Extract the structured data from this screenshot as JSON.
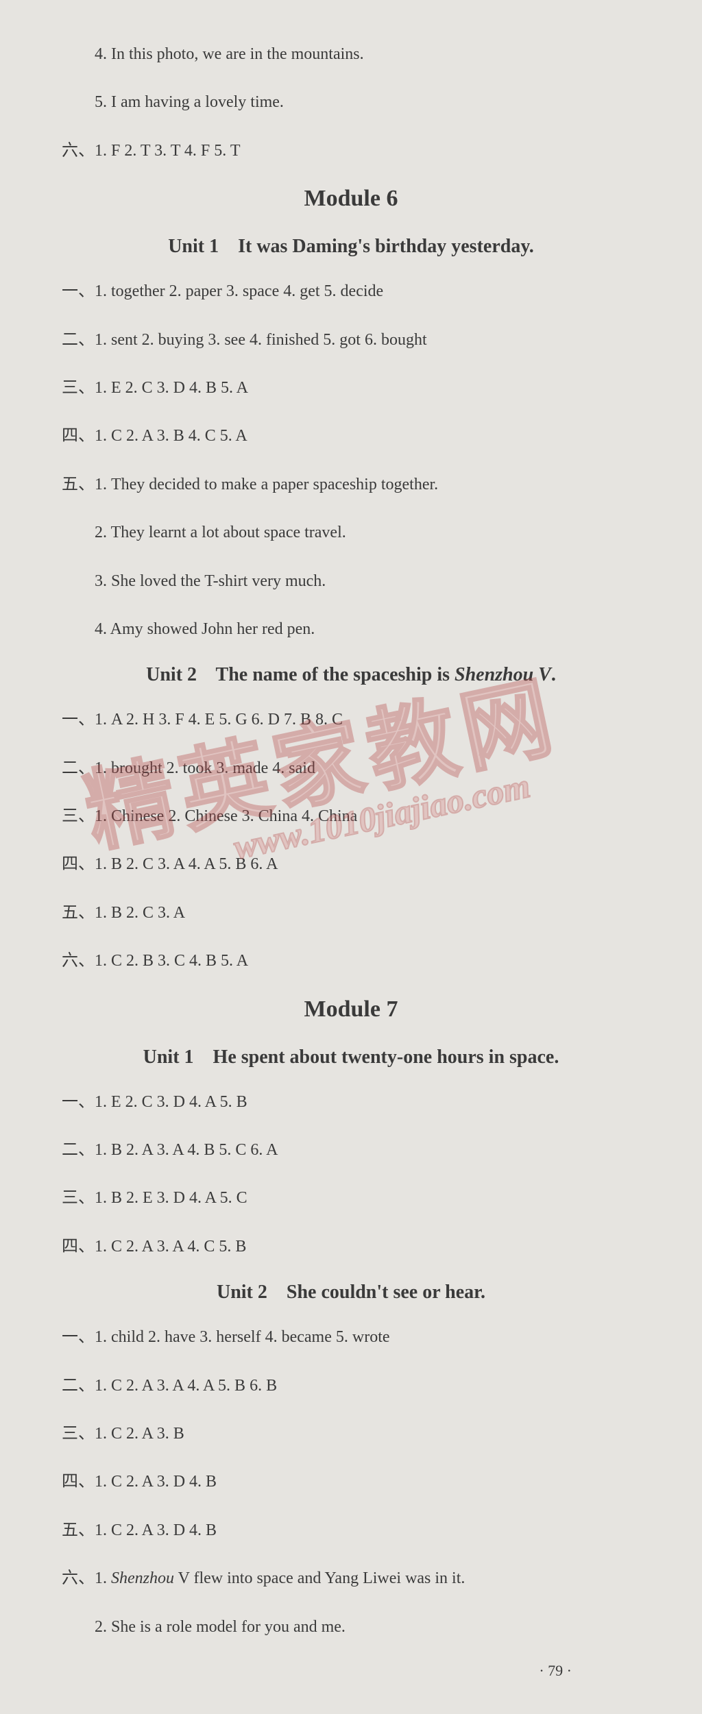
{
  "top": {
    "l1": "4. In this photo, we are in the mountains.",
    "l2": "5. I am having a lovely time.",
    "l3": "六、1. F   2. T   3. T   4. F   5. T"
  },
  "mod6": {
    "title": "Module 6",
    "u1": {
      "title_prefix": "Unit 1",
      "title_text": "It was Daming's birthday yesterday.",
      "a1": "一、1. together   2. paper   3. space   4. get   5. decide",
      "a2": "二、1. sent   2. buying   3. see   4. finished   5. got   6. bought",
      "a3": "三、1. E   2. C   3. D   4. B   5. A",
      "a4": "四、1. C   2. A   3. B   4. C   5. A",
      "a5": "五、1. They decided to make a paper spaceship together.",
      "a5_2": "2. They learnt a lot about space travel.",
      "a5_3": "3. She loved the T-shirt very much.",
      "a5_4": "4. Amy showed John her red pen."
    },
    "u2": {
      "title_prefix": "Unit 2",
      "title_text_a": "The name of the spaceship is ",
      "title_text_italic": "Shenzhou V",
      "title_text_b": ".",
      "a1": "一、1. A   2. H   3. F   4. E   5. G   6. D   7. B   8. C",
      "a2": "二、1. brought   2. took   3. made   4. said",
      "a3": "三、1. Chinese   2. Chinese   3. China   4. China",
      "a4": "四、1. B   2. C   3. A   4. A   5. B   6. A",
      "a5": "五、1. B   2. C   3. A",
      "a6": "六、1. C   2. B   3. C   4. B   5. A"
    }
  },
  "mod7": {
    "title": "Module 7",
    "u1": {
      "title_prefix": "Unit 1",
      "title_text": "He spent about twenty-one hours in space.",
      "a1": "一、1. E   2. C   3. D   4. A   5. B",
      "a2": "二、1. B   2. A   3. A   4. B   5. C   6. A",
      "a3": "三、1. B   2. E   3. D   4. A   5. C",
      "a4": "四、1. C   2. A   3. A   4. C   5. B"
    },
    "u2": {
      "title_prefix": "Unit 2",
      "title_text": "She couldn't see or hear.",
      "a1": "一、1. child   2. have   3. herself   4. became   5. wrote",
      "a2": "二、1. C   2. A   3. A   4. A   5. B   6. B",
      "a3": "三、1. C   2. A   3. B",
      "a4": "四、1. C   2. A   3. D   4. B",
      "a5": "五、1. C   2. A   3. D   4. B",
      "a6_pre": "六、1. ",
      "a6_italic": "Shenzhou",
      "a6_post": " V flew into space and Yang Liwei was in it.",
      "a6_2": "2. She is a role model for you and me."
    }
  },
  "page": "· 79 ·",
  "watermark": {
    "chars": "精英家教网",
    "url": "www.1010jiajiao.com"
  }
}
